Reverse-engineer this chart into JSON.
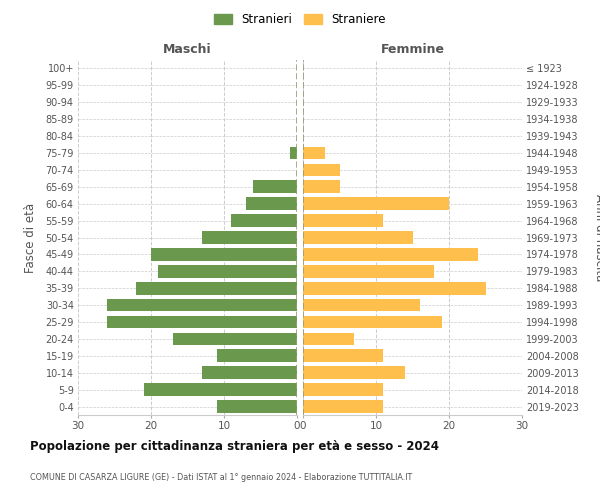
{
  "age_groups": [
    "0-4",
    "5-9",
    "10-14",
    "15-19",
    "20-24",
    "25-29",
    "30-34",
    "35-39",
    "40-44",
    "45-49",
    "50-54",
    "55-59",
    "60-64",
    "65-69",
    "70-74",
    "75-79",
    "80-84",
    "85-89",
    "90-94",
    "95-99",
    "100+"
  ],
  "birth_years": [
    "2019-2023",
    "2014-2018",
    "2009-2013",
    "2004-2008",
    "1999-2003",
    "1994-1998",
    "1989-1993",
    "1984-1988",
    "1979-1983",
    "1974-1978",
    "1969-1973",
    "1964-1968",
    "1959-1963",
    "1954-1958",
    "1949-1953",
    "1944-1948",
    "1939-1943",
    "1934-1938",
    "1929-1933",
    "1924-1928",
    "≤ 1923"
  ],
  "maschi": [
    11,
    21,
    13,
    11,
    17,
    26,
    26,
    22,
    19,
    20,
    13,
    9,
    7,
    6,
    0,
    1,
    0,
    0,
    0,
    0,
    0
  ],
  "femmine": [
    11,
    11,
    14,
    11,
    7,
    19,
    16,
    25,
    18,
    24,
    15,
    11,
    20,
    5,
    5,
    3,
    0,
    0,
    0,
    0,
    0
  ],
  "maschi_color": "#6a994e",
  "femmine_color": "#ffbf4d",
  "background_color": "#ffffff",
  "grid_color": "#cccccc",
  "dashed_color": "#999977",
  "title": "Popolazione per cittadinanza straniera per età e sesso - 2024",
  "subtitle": "COMUNE DI CASARZA LIGURE (GE) - Dati ISTAT al 1° gennaio 2024 - Elaborazione TUTTITALIA.IT",
  "ylabel_left": "Fasce di età",
  "ylabel_right": "Anni di nascita",
  "header_maschi": "Maschi",
  "header_femmine": "Femmine",
  "legend_stranieri": "Stranieri",
  "legend_straniere": "Straniere",
  "xlim": 30,
  "bar_height": 0.75
}
